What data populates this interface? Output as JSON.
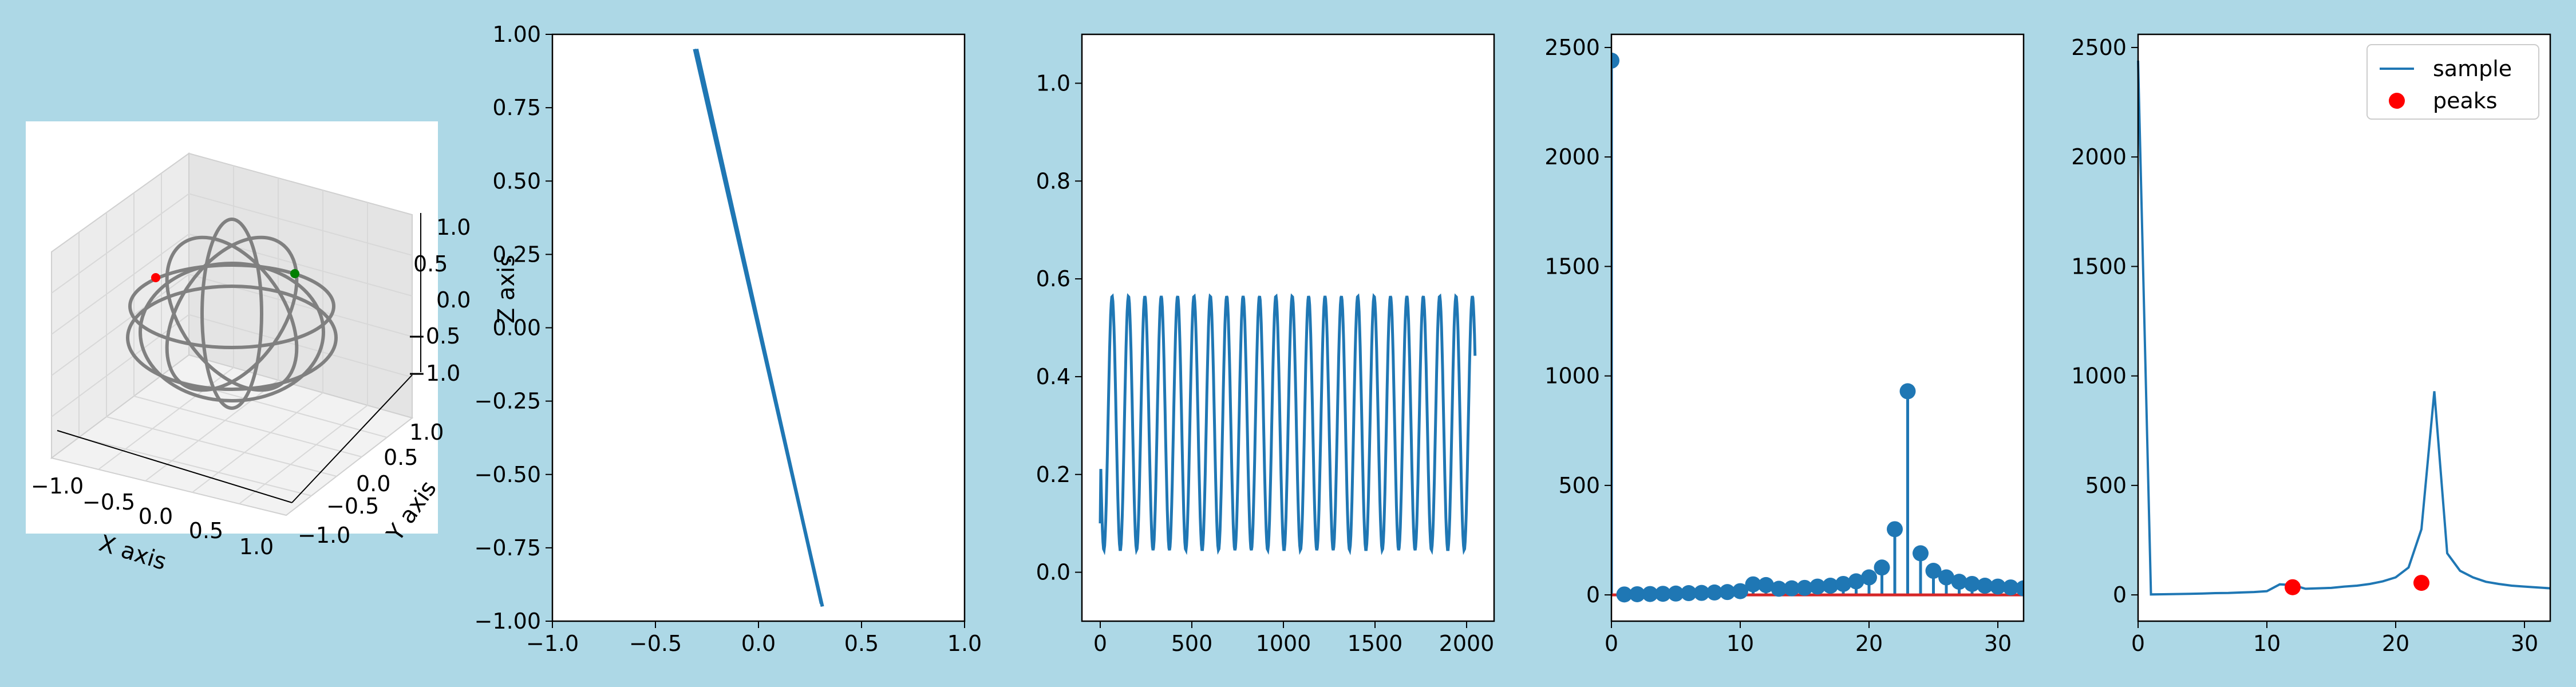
{
  "figure": {
    "background": "#add8e6",
    "line_color": "#1f77b4",
    "marker_color": "#1f77b4",
    "peak_color": "#ff0000",
    "stem_base_color": "#d62728"
  },
  "chart_data": [
    {
      "type": "line3d",
      "zlabel": "Z axis",
      "xlabel": "X axis",
      "ylabel": "Y axis",
      "xticks": [
        "−1.0",
        "−0.5",
        "0.0",
        "0.5",
        "1.0"
      ],
      "yticks": [
        "−1.0",
        "−0.5",
        "0.0",
        "0.5",
        "1.0"
      ],
      "zticks": [
        "−1.0",
        "−0.5",
        "0.0",
        "0.5",
        "1.0"
      ],
      "xlim": [
        -1,
        1
      ],
      "ylim": [
        -1,
        1
      ],
      "zlim": [
        -1,
        1
      ],
      "curve_color": "#808080",
      "points": [
        {
          "color": "#ff0000"
        },
        {
          "color": "#008000"
        }
      ]
    },
    {
      "type": "line",
      "xlim": [
        -1,
        1
      ],
      "ylim": [
        -1,
        1
      ],
      "xticks": [
        -1.0,
        -0.5,
        0.0,
        0.5,
        1.0
      ],
      "xtick_labels": [
        "−1.0",
        "−0.5",
        "0.0",
        "0.5",
        "1.0"
      ],
      "yticks": [
        1.0,
        0.75,
        0.5,
        0.25,
        0.0,
        -0.25,
        -0.5,
        -0.75,
        -1.0
      ],
      "ytick_labels": [
        "1.00",
        "0.75",
        "0.50",
        "0.25",
        "0.00",
        "−0.25",
        "−0.50",
        "−0.75",
        "−1.00"
      ],
      "series": [
        {
          "x": [
            -0.31,
            0.31
          ],
          "y": [
            0.95,
            -0.95
          ]
        },
        {
          "x": [
            -0.3,
            0.305
          ],
          "y": [
            0.95,
            -0.94
          ]
        }
      ]
    },
    {
      "type": "line",
      "xlim": [
        -100,
        2150
      ],
      "ylim": [
        -0.1,
        1.1
      ],
      "xticks": [
        0,
        500,
        1000,
        1500,
        2000
      ],
      "xtick_labels": [
        "0",
        "500",
        "1000",
        "1500",
        "2000"
      ],
      "yticks": [
        0.0,
        0.2,
        0.4,
        0.6,
        0.8,
        1.0
      ],
      "ytick_labels": [
        "0.0",
        "0.2",
        "0.4",
        "0.6",
        "0.8",
        "1.0"
      ],
      "signal": {
        "n": 2048,
        "offset": 0.305,
        "amplitude": 0.26,
        "period": 89.4,
        "phase": 3.3,
        "ymax": 0.565,
        "ymin": 0.045
      }
    },
    {
      "type": "stem",
      "xlim": [
        0,
        32
      ],
      "ylim": [
        -120,
        2560
      ],
      "xticks": [
        0,
        10,
        20,
        30
      ],
      "xtick_labels": [
        "0",
        "10",
        "20",
        "30"
      ],
      "yticks": [
        0,
        500,
        1000,
        1500,
        2000,
        2500
      ],
      "ytick_labels": [
        "0",
        "500",
        "1000",
        "1500",
        "2000",
        "2500"
      ],
      "x": [
        0,
        1,
        2,
        3,
        4,
        5,
        6,
        7,
        8,
        9,
        10,
        11,
        12,
        13,
        14,
        15,
        16,
        17,
        18,
        19,
        20,
        21,
        22,
        23,
        24,
        25,
        26,
        27,
        28,
        29,
        30,
        31,
        32
      ],
      "values": [
        2440,
        2,
        3,
        4,
        5,
        6,
        8,
        9,
        11,
        13,
        17,
        48,
        45,
        28,
        30,
        32,
        38,
        42,
        50,
        62,
        80,
        125,
        300,
        930,
        190,
        110,
        80,
        60,
        50,
        42,
        38,
        34,
        30
      ]
    },
    {
      "type": "line",
      "xlim": [
        0,
        32
      ],
      "ylim": [
        -120,
        2560
      ],
      "xticks": [
        0,
        10,
        20,
        30
      ],
      "xtick_labels": [
        "0",
        "10",
        "20",
        "30"
      ],
      "yticks": [
        0,
        500,
        1000,
        1500,
        2000,
        2500
      ],
      "ytick_labels": [
        "0",
        "500",
        "1000",
        "1500",
        "2000",
        "2500"
      ],
      "legend": {
        "position": "upper right",
        "entries": [
          "sample",
          "peaks"
        ]
      },
      "series": [
        {
          "name": "sample",
          "x": [
            0,
            1,
            2,
            3,
            4,
            5,
            6,
            7,
            8,
            9,
            10,
            11,
            12,
            13,
            14,
            15,
            16,
            17,
            18,
            19,
            20,
            21,
            22,
            23,
            24,
            25,
            26,
            27,
            28,
            29,
            30,
            31,
            32
          ],
          "values": [
            2440,
            2,
            3,
            4,
            5,
            6,
            8,
            9,
            11,
            13,
            17,
            48,
            45,
            28,
            30,
            32,
            38,
            42,
            50,
            62,
            80,
            125,
            300,
            930,
            190,
            110,
            80,
            60,
            50,
            42,
            38,
            34,
            30
          ]
        },
        {
          "name": "peaks",
          "x": [
            12,
            22
          ],
          "values": [
            35,
            55
          ]
        }
      ]
    }
  ]
}
